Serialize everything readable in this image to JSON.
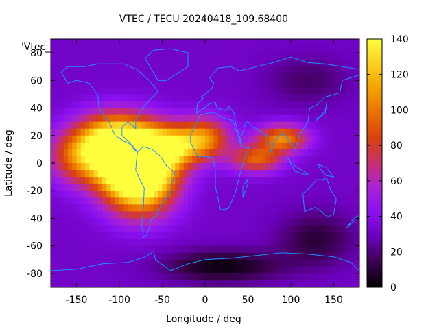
{
  "chart_data": {
    "type": "heatmap",
    "title": "VTEC / TECU 20240418_109.68400",
    "xlabel": "Longitude / deg",
    "ylabel": "Latitude / deg",
    "series_label": "'Vtec_",
    "xlim": [
      -180,
      180
    ],
    "ylim": [
      -90,
      90
    ],
    "xticks": [
      -150,
      -100,
      -50,
      0,
      50,
      100,
      150
    ],
    "yticks": [
      -80,
      -60,
      -40,
      -20,
      0,
      20,
      40,
      60,
      80
    ],
    "colorbar": {
      "range": [
        0,
        140
      ],
      "ticks": [
        0,
        20,
        40,
        60,
        80,
        100,
        120,
        140
      ]
    },
    "palette": [
      "#000000",
      "#3c0050",
      "#6a00b8",
      "#8a10f0",
      "#a822d8",
      "#c83070",
      "#d84010",
      "#ea7000",
      "#f5a000",
      "#fbd020",
      "#ffff40"
    ],
    "coastline_color": "#1e90ff",
    "features": [
      {
        "lon": -85,
        "lat": 3,
        "value": 112,
        "rx": 45,
        "ry": 25
      },
      {
        "lon": -75,
        "lat": -14,
        "value": 95,
        "rx": 40,
        "ry": 25
      },
      {
        "lon": -110,
        "lat": 15,
        "value": 80,
        "rx": 40,
        "ry": 20
      },
      {
        "lon": -40,
        "lat": 12,
        "value": 72,
        "rx": 35,
        "ry": 15
      },
      {
        "lon": 0,
        "lat": 18,
        "value": 65,
        "rx": 30,
        "ry": 15
      },
      {
        "lon": 60,
        "lat": 3,
        "value": 60,
        "rx": 30,
        "ry": 10
      },
      {
        "lon": 90,
        "lat": 18,
        "value": 72,
        "rx": 30,
        "ry": 10
      },
      {
        "lon": -150,
        "lat": 5,
        "value": 50,
        "rx": 35,
        "ry": 20
      },
      {
        "lon": 20,
        "lat": -75,
        "value": -30,
        "rx": 70,
        "ry": 12
      },
      {
        "lon": 130,
        "lat": -55,
        "value": -22,
        "rx": 45,
        "ry": 20
      },
      {
        "lon": 120,
        "lat": 60,
        "value": -15,
        "rx": 50,
        "ry": 18
      }
    ],
    "background_value": 32
  }
}
